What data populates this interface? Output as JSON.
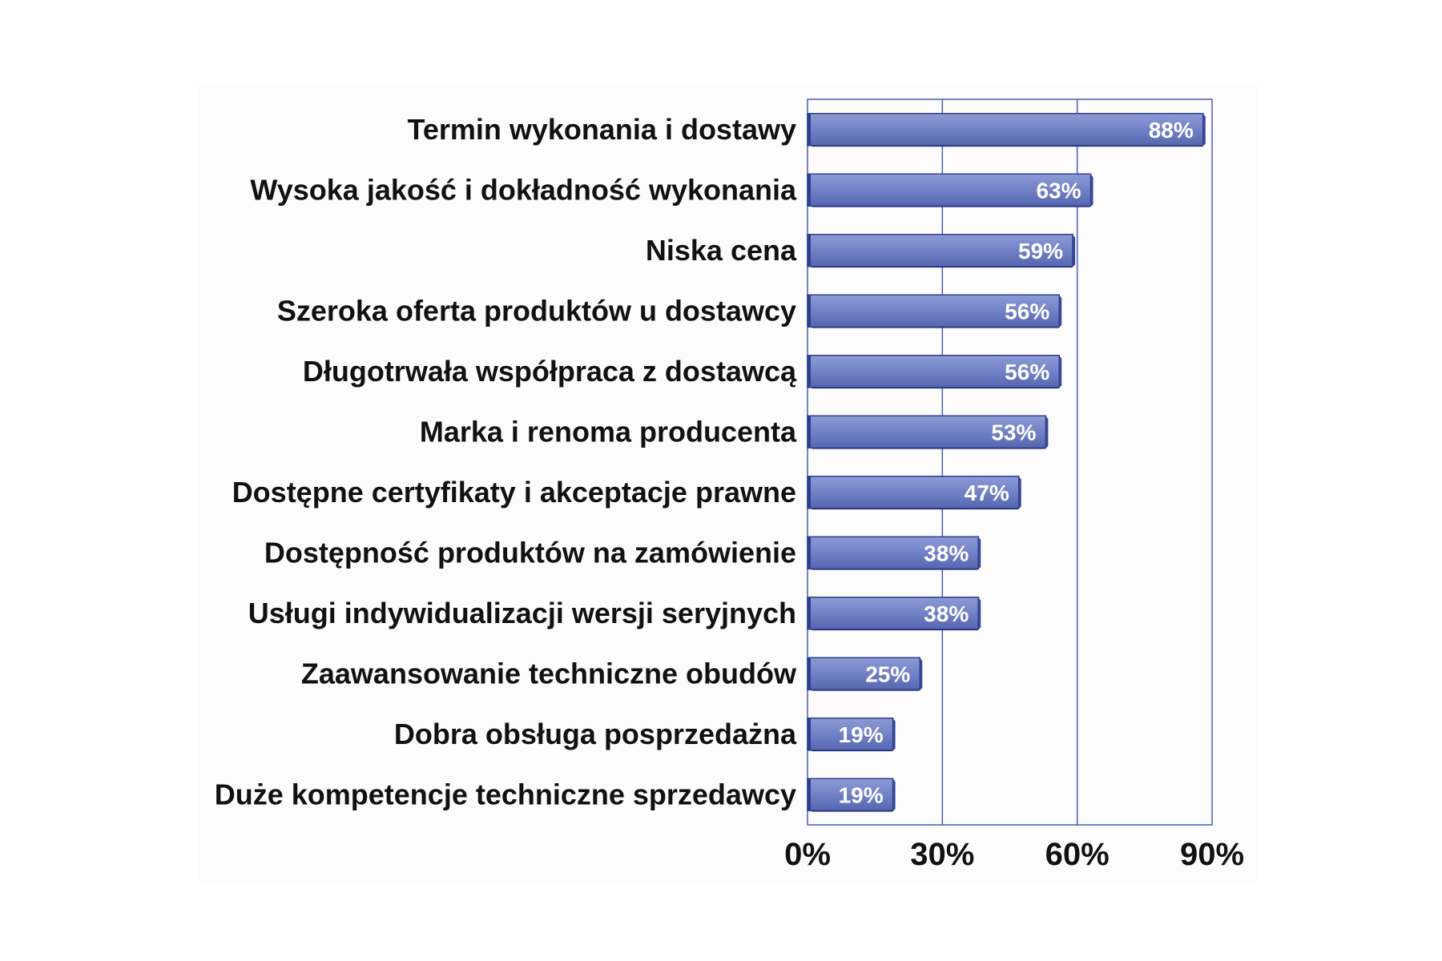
{
  "chart_data": {
    "type": "bar",
    "orientation": "horizontal",
    "categories": [
      "Termin wykonania i dostawy",
      "Wysoka jakość i dokładność wykonania",
      "Niska cena",
      "Szeroka oferta produktów u dostawcy",
      "Długotrwała współpraca z dostawcą",
      "Marka i renoma producenta",
      "Dostępne certyfikaty i akceptacje prawne",
      "Dostępność produktów na zamówienie",
      "Usługi indywidualizacji wersji seryjnych",
      "Zaawansowanie techniczne obudów",
      "Dobra obsługa posprzedażna",
      "Duże kompetencje techniczne sprzedawcy"
    ],
    "values": [
      88,
      63,
      59,
      56,
      56,
      53,
      47,
      38,
      38,
      25,
      19,
      19
    ],
    "value_labels": [
      "88%",
      "63%",
      "59%",
      "56%",
      "56%",
      "53%",
      "47%",
      "38%",
      "38%",
      "25%",
      "19%",
      "19%"
    ],
    "xlim": [
      0,
      90
    ],
    "xticks": [
      0,
      30,
      60,
      90
    ],
    "xtick_labels": [
      "0%",
      "30%",
      "60%",
      "90%"
    ],
    "grid": true,
    "bar_color": "#6f7fc4",
    "bar_edge_color": "#2f3f8f",
    "grid_color": "#4a5db8"
  }
}
